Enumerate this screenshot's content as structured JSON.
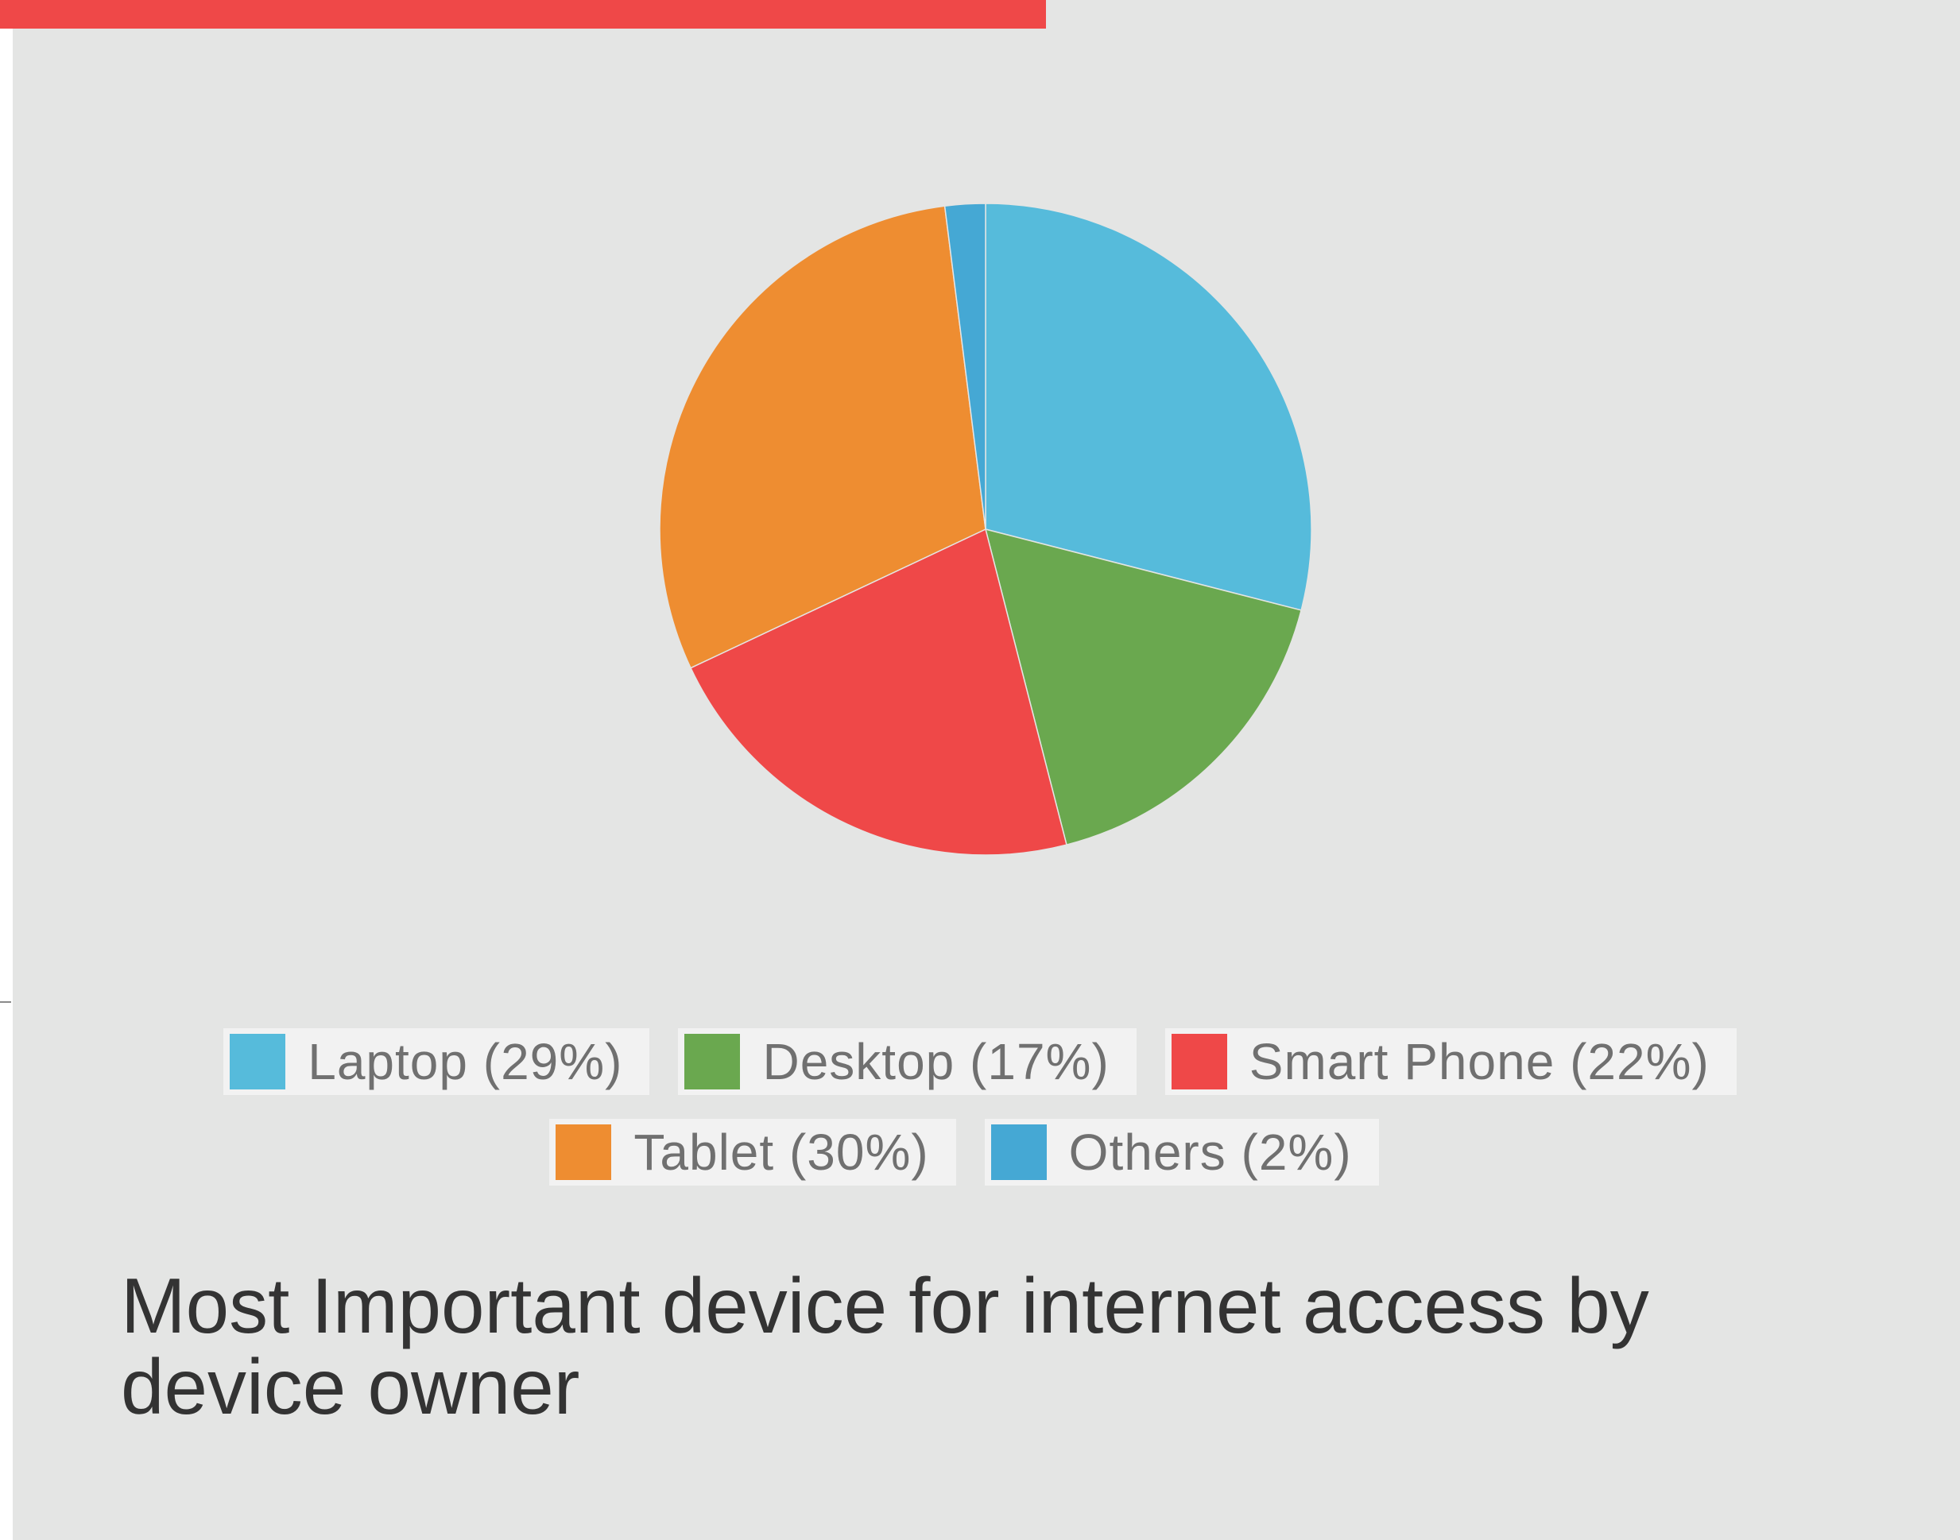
{
  "colors": {
    "accent_bar": "#ef4848",
    "panel_background": "#e4e5e4"
  },
  "chart_data": {
    "type": "pie",
    "title": "Most Important device for internet access by device owner",
    "categories": [
      "Laptop",
      "Desktop",
      "Smart Phone",
      "Tablet",
      "Others"
    ],
    "values": [
      29,
      17,
      22,
      30,
      2
    ],
    "unit": "%",
    "colors": [
      "#56bbdb",
      "#6aa84f",
      "#ef4848",
      "#ee8d31",
      "#45a8d4"
    ],
    "legend_labels": [
      "Laptop (29%)",
      "Desktop (17%)",
      "Smart Phone (22%)",
      "Tablet (30%)",
      "Others (2%)"
    ],
    "legend_position": "bottom",
    "start_angle": "12 o'clock",
    "direction": "clockwise"
  }
}
